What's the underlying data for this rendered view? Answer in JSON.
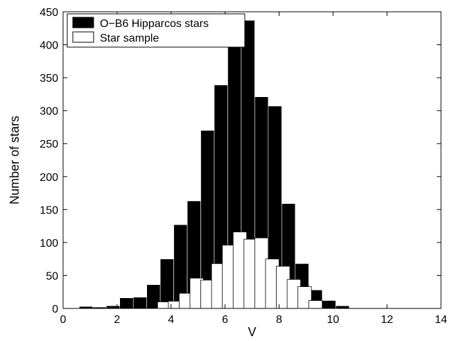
{
  "chart_data": {
    "type": "bar",
    "xlabel": "V",
    "ylabel": "Number of stars",
    "xlim": [
      0,
      14
    ],
    "ylim": [
      0,
      450
    ],
    "xticks": [
      0,
      2,
      4,
      6,
      8,
      10,
      12,
      14
    ],
    "yticks": [
      0,
      50,
      100,
      150,
      200,
      250,
      300,
      350,
      400,
      450
    ],
    "xtick_labels": [
      "0",
      "2",
      "4",
      "6",
      "8",
      "10",
      "12",
      "14"
    ],
    "ytick_labels": [
      "0",
      "50",
      "100",
      "150",
      "200",
      "250",
      "300",
      "350",
      "400",
      "450"
    ],
    "grid": false,
    "legend_position": "top-left",
    "bin_width": 0.5,
    "series": [
      {
        "name": "O−B6 Hipparcos stars",
        "color": "#000000",
        "bins": [
          [
            0.6,
            3
          ],
          [
            1.1,
            2
          ],
          [
            1.6,
            4
          ],
          [
            2.1,
            16
          ],
          [
            2.6,
            17
          ],
          [
            3.1,
            36
          ],
          [
            3.6,
            75
          ],
          [
            4.1,
            127
          ],
          [
            4.6,
            163
          ],
          [
            5.1,
            270
          ],
          [
            5.6,
            339
          ],
          [
            6.1,
            447
          ],
          [
            6.6,
            437
          ],
          [
            7.1,
            321
          ],
          [
            7.6,
            307
          ],
          [
            8.1,
            159
          ],
          [
            8.6,
            68
          ],
          [
            9.1,
            28
          ],
          [
            9.6,
            12
          ],
          [
            10.1,
            4
          ]
        ]
      },
      {
        "name": "Star sample",
        "color": "#ffffff",
        "bins": [
          [
            3.5,
            10
          ],
          [
            3.9,
            11
          ],
          [
            4.3,
            23
          ],
          [
            4.7,
            46
          ],
          [
            5.1,
            43
          ],
          [
            5.5,
            68
          ],
          [
            5.9,
            96
          ],
          [
            6.3,
            116
          ],
          [
            6.7,
            105
          ],
          [
            7.1,
            107
          ],
          [
            7.5,
            75
          ],
          [
            7.9,
            64
          ],
          [
            8.3,
            44
          ],
          [
            8.7,
            33
          ],
          [
            9.1,
            12
          ]
        ]
      }
    ]
  }
}
